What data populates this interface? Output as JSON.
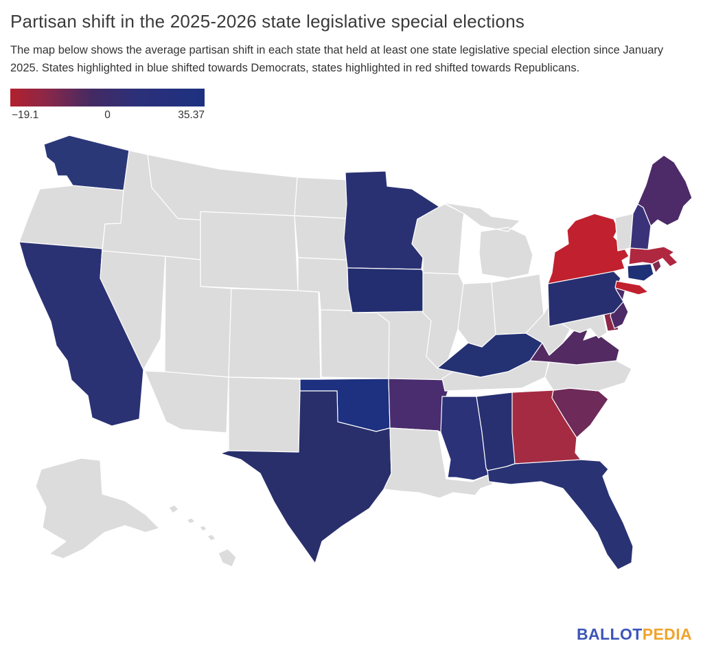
{
  "header": {
    "title": "Partisan shift in the 2025-2026 state legislative special elections",
    "description": "The map below shows the average partisan shift in each state that held at least one state legislative special election since January 2025. States highlighted in blue shifted towards Democrats, states highlighted in red shifted towards Republicans."
  },
  "legend": {
    "min_label": "−19.1",
    "zero_label": "0",
    "max_label": "35.37",
    "min_value": -19.1,
    "max_value": 35.37,
    "gradient_stops": [
      "#b2202d 0%",
      "#8c2747 18%",
      "#432a63 42%",
      "#2c3079 65%",
      "#1d3180 100%"
    ]
  },
  "map": {
    "border_color": "#ffffff",
    "no_election_color": "#dcdcdc",
    "states": [
      {
        "id": "WA",
        "name": "Washington",
        "shift": "towards_democrats",
        "fill": "#2b3878"
      },
      {
        "id": "OR",
        "name": "Oregon",
        "shift": "no_special_election",
        "fill": "#dcdcdc"
      },
      {
        "id": "CA",
        "name": "California",
        "shift": "towards_democrats",
        "fill": "#2b3273"
      },
      {
        "id": "NV",
        "name": "Nevada",
        "shift": "no_special_election",
        "fill": "#dcdcdc"
      },
      {
        "id": "ID",
        "name": "Idaho",
        "shift": "no_special_election",
        "fill": "#dcdcdc"
      },
      {
        "id": "MT",
        "name": "Montana",
        "shift": "no_special_election",
        "fill": "#dcdcdc"
      },
      {
        "id": "WY",
        "name": "Wyoming",
        "shift": "no_special_election",
        "fill": "#dcdcdc"
      },
      {
        "id": "UT",
        "name": "Utah",
        "shift": "no_special_election",
        "fill": "#dcdcdc"
      },
      {
        "id": "CO",
        "name": "Colorado",
        "shift": "no_special_election",
        "fill": "#dcdcdc"
      },
      {
        "id": "AZ",
        "name": "Arizona",
        "shift": "no_special_election",
        "fill": "#dcdcdc"
      },
      {
        "id": "NM",
        "name": "New Mexico",
        "shift": "no_special_election",
        "fill": "#dcdcdc"
      },
      {
        "id": "ND",
        "name": "North Dakota",
        "shift": "no_special_election",
        "fill": "#dcdcdc"
      },
      {
        "id": "SD",
        "name": "South Dakota",
        "shift": "no_special_election",
        "fill": "#dcdcdc"
      },
      {
        "id": "NE",
        "name": "Nebraska",
        "shift": "no_special_election",
        "fill": "#dcdcdc"
      },
      {
        "id": "KS",
        "name": "Kansas",
        "shift": "no_special_election",
        "fill": "#dcdcdc"
      },
      {
        "id": "OK",
        "name": "Oklahoma",
        "shift": "towards_democrats",
        "fill": "#1d3180"
      },
      {
        "id": "TX",
        "name": "Texas",
        "shift": "towards_democrats",
        "fill": "#292f6b"
      },
      {
        "id": "MN",
        "name": "Minnesota",
        "shift": "towards_democrats",
        "fill": "#2a3173"
      },
      {
        "id": "IA",
        "name": "Iowa",
        "shift": "towards_democrats",
        "fill": "#232e70"
      },
      {
        "id": "MO",
        "name": "Missouri",
        "shift": "no_special_election",
        "fill": "#dcdcdc"
      },
      {
        "id": "AR",
        "name": "Arkansas",
        "shift": "towards_democrats",
        "fill": "#4a2d6e"
      },
      {
        "id": "LA",
        "name": "Louisiana",
        "shift": "no_special_election",
        "fill": "#dcdcdc"
      },
      {
        "id": "WI",
        "name": "Wisconsin",
        "shift": "no_special_election",
        "fill": "#dcdcdc"
      },
      {
        "id": "IL",
        "name": "Illinois",
        "shift": "no_special_election",
        "fill": "#dcdcdc"
      },
      {
        "id": "MI",
        "name": "Michigan",
        "shift": "no_special_election",
        "fill": "#dcdcdc"
      },
      {
        "id": "IN",
        "name": "Indiana",
        "shift": "no_special_election",
        "fill": "#dcdcdc"
      },
      {
        "id": "OH",
        "name": "Ohio",
        "shift": "no_special_election",
        "fill": "#dcdcdc"
      },
      {
        "id": "KY",
        "name": "Kentucky",
        "shift": "towards_democrats",
        "fill": "#243173"
      },
      {
        "id": "TN",
        "name": "Tennessee",
        "shift": "no_special_election",
        "fill": "#dcdcdc"
      },
      {
        "id": "MS",
        "name": "Mississippi",
        "shift": "towards_democrats",
        "fill": "#2b3278"
      },
      {
        "id": "AL",
        "name": "Alabama",
        "shift": "towards_democrats",
        "fill": "#283071"
      },
      {
        "id": "GA",
        "name": "Georgia",
        "shift": "towards_republicans",
        "fill": "#a52b43"
      },
      {
        "id": "FL",
        "name": "Florida",
        "shift": "towards_democrats",
        "fill": "#293273"
      },
      {
        "id": "SC",
        "name": "South Carolina",
        "shift": "towards_republicans",
        "fill": "#6e2a58"
      },
      {
        "id": "NC",
        "name": "North Carolina",
        "shift": "no_special_election",
        "fill": "#dcdcdc"
      },
      {
        "id": "VA",
        "name": "Virginia",
        "shift": "towards_democrats",
        "fill": "#532a62"
      },
      {
        "id": "WV",
        "name": "West Virginia",
        "shift": "no_special_election",
        "fill": "#dcdcdc"
      },
      {
        "id": "MD",
        "name": "Maryland",
        "shift": "no_special_election",
        "fill": "#dcdcdc"
      },
      {
        "id": "DE",
        "name": "Delaware",
        "shift": "towards_republicans",
        "fill": "#8c2747"
      },
      {
        "id": "NJ",
        "name": "New Jersey",
        "shift": "towards_democrats",
        "fill": "#4c2a67"
      },
      {
        "id": "PA",
        "name": "Pennsylvania",
        "shift": "towards_democrats",
        "fill": "#272f70"
      },
      {
        "id": "NY",
        "name": "New York",
        "shift": "towards_republicans",
        "fill": "#c1202e"
      },
      {
        "id": "CT",
        "name": "Connecticut",
        "shift": "towards_democrats",
        "fill": "#1e3076"
      },
      {
        "id": "RI",
        "name": "Rhode Island",
        "shift": "towards_republicans",
        "fill": "#7e2b4e"
      },
      {
        "id": "MA",
        "name": "Massachusetts",
        "shift": "towards_republicans",
        "fill": "#b02740"
      },
      {
        "id": "VT",
        "name": "Vermont",
        "shift": "no_special_election",
        "fill": "#dcdcdc"
      },
      {
        "id": "NH",
        "name": "New Hampshire",
        "shift": "towards_democrats",
        "fill": "#3a3379"
      },
      {
        "id": "ME",
        "name": "Maine",
        "shift": "towards_democrats",
        "fill": "#4d2a68"
      },
      {
        "id": "AK",
        "name": "Alaska",
        "shift": "no_special_election",
        "fill": "#dcdcdc"
      },
      {
        "id": "HI",
        "name": "Hawaii",
        "shift": "no_special_election",
        "fill": "#dcdcdc"
      }
    ]
  },
  "footer": {
    "logo": {
      "part1": "BALLOT",
      "part2": "PEDIA",
      "part1_color": "#3c55b8",
      "part2_color": "#f0a42c"
    }
  }
}
